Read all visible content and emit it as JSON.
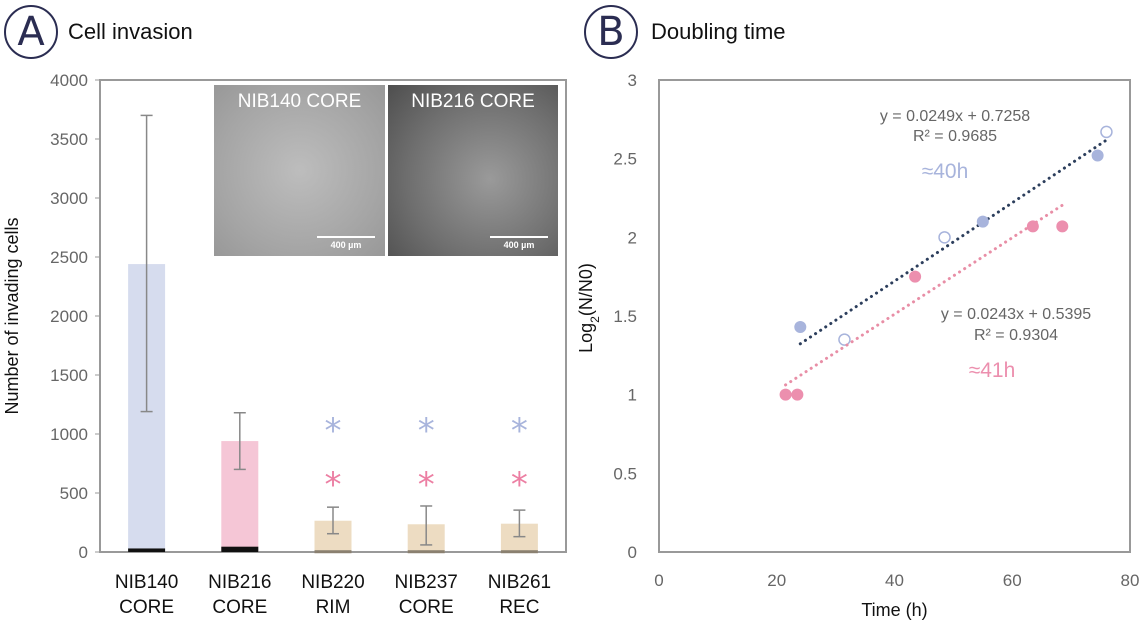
{
  "panel_a": {
    "badge": "A",
    "title": "Cell invasion",
    "images": [
      {
        "label": "NIB140 CORE",
        "scale": "400 µm"
      },
      {
        "label": "NIB216 CORE",
        "scale": "400 µm"
      }
    ]
  },
  "panel_b": {
    "badge": "B",
    "title": "Doubling time"
  },
  "chart_data": [
    {
      "type": "bar",
      "title": "Cell invasion",
      "ylabel": "Number of invading cells",
      "xlabel": "",
      "ylim": [
        0,
        4000
      ],
      "yticks": [
        "0",
        "500",
        "1000",
        "1500",
        "2000",
        "2500",
        "3000",
        "3500",
        "4000"
      ],
      "categories": [
        [
          "NIB140",
          "CORE"
        ],
        [
          "NIB216",
          "CORE"
        ],
        [
          "NIB220",
          "RIM"
        ],
        [
          "NIB237",
          "CORE"
        ],
        [
          "NIB261",
          "REC"
        ]
      ],
      "values": [
        2440,
        940,
        265,
        235,
        240
      ],
      "error": [
        [
          1190,
          3700
        ],
        [
          700,
          1180
        ],
        [
          155,
          380
        ],
        [
          60,
          390
        ],
        [
          130,
          355
        ]
      ],
      "baseline_values": [
        30,
        45,
        15,
        15,
        15
      ],
      "colors": [
        "#d6dcee",
        "#f5c6d6",
        "#eddcc2",
        "#eddcc2",
        "#eddcc2"
      ],
      "significance": [
        {
          "category_index": 2,
          "marks": [
            {
              "y": 1120,
              "color": "#a8b4dc"
            },
            {
              "y": 660,
              "color": "#ec7fa3"
            }
          ]
        },
        {
          "category_index": 3,
          "marks": [
            {
              "y": 1120,
              "color": "#a8b4dc"
            },
            {
              "y": 660,
              "color": "#ec7fa3"
            }
          ]
        },
        {
          "category_index": 4,
          "marks": [
            {
              "y": 1120,
              "color": "#a8b4dc"
            },
            {
              "y": 660,
              "color": "#ec7fa3"
            }
          ]
        }
      ],
      "significance_symbol": "*"
    },
    {
      "type": "scatter",
      "title": "Doubling time",
      "xlabel": "Time (h)",
      "ylabel_main": "Log",
      "ylabel_sub": "2",
      "ylabel_rest": "(N/N0)",
      "xlim": [
        0,
        80
      ],
      "ylim": [
        0,
        3
      ],
      "xticks": [
        "0",
        "20",
        "40",
        "60",
        "80"
      ],
      "yticks": [
        "0",
        "0.5",
        "1",
        "1.5",
        "2",
        "2.5",
        "3"
      ],
      "series": [
        {
          "name": "NIB140 CORE",
          "color": "#a8b4dc",
          "trend_color": "#2c3e5c",
          "filled": [
            [
              24,
              1.43
            ],
            [
              55,
              2.1
            ],
            [
              74.5,
              2.52
            ]
          ],
          "open": [
            [
              31.5,
              1.35
            ],
            [
              48.5,
              2.0
            ],
            [
              76,
              2.67
            ]
          ],
          "trendline": {
            "slope": 0.0249,
            "intercept": 0.7258,
            "x_range": [
              24,
              76
            ]
          },
          "equation": "y = 0.0249x + 0.7258",
          "r2": "R² = 0.9685",
          "doubling": "≈40h"
        },
        {
          "name": "NIB216 CORE",
          "color": "#ec8fae",
          "trend_color": "#e88ea6",
          "filled": [
            [
              21.5,
              1.0
            ],
            [
              23.5,
              1.0
            ],
            [
              43.5,
              1.75
            ],
            [
              63.5,
              2.07
            ],
            [
              68.5,
              2.07
            ]
          ],
          "open": [],
          "trendline": {
            "slope": 0.0243,
            "intercept": 0.5395,
            "x_range": [
              21.5,
              68.5
            ]
          },
          "equation": "y = 0.0243x + 0.5395",
          "r2": "R² = 0.9304",
          "doubling": "≈41h"
        }
      ]
    }
  ]
}
